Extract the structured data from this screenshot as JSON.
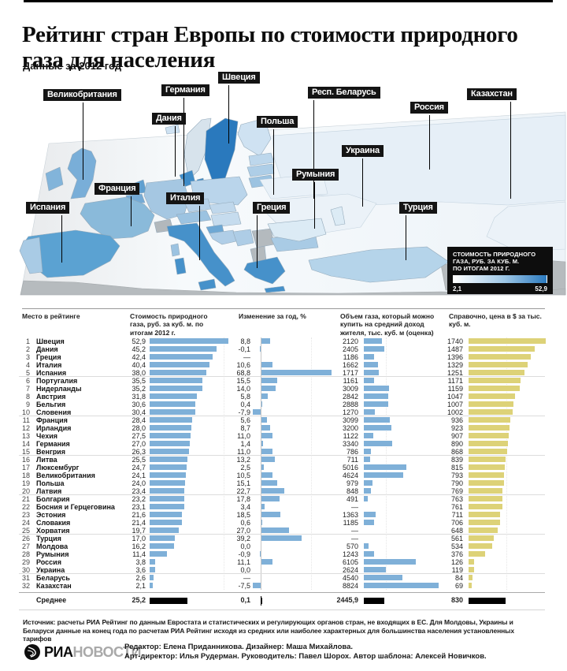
{
  "title": "Рейтинг стран Европы по стоимости природного газа для населения",
  "subtitle": "Данные за 2012 год",
  "colors": {
    "bar_blue": "#7fb0d8",
    "bar_yellow": "#ddd278",
    "average_bar": "#000000",
    "map_scale_min": "#ffffff",
    "map_scale_max": "#2b7abf",
    "label_bg": "#141414"
  },
  "map": {
    "labels": [
      {
        "text": "Швеция"
      },
      {
        "text": "Великобритания"
      },
      {
        "text": "Германия"
      },
      {
        "text": "Респ. Беларусь"
      },
      {
        "text": "Казахстан"
      },
      {
        "text": "Россия"
      },
      {
        "text": "Дания"
      },
      {
        "text": "Польша"
      },
      {
        "text": "Украина"
      },
      {
        "text": "Румыния"
      },
      {
        "text": "Франция"
      },
      {
        "text": "Италия"
      },
      {
        "text": "Греция"
      },
      {
        "text": "Турция"
      },
      {
        "text": "Испания"
      }
    ],
    "legend": {
      "l1": "СТОИМОСТЬ ПРИРОДНОГО",
      "l2": "ГАЗА, РУБ. ЗА КУБ. М.",
      "l3": "ПО ИТОГАМ 2012 Г.",
      "min": "2,1",
      "max": "52,9"
    }
  },
  "table": {
    "columns": [
      "Место в рейтинге",
      "Стоимость природного газа, руб. за куб. м. по итогам 2012 г.",
      "Изменение за год, %",
      "Объем газа, который можно купить на средний доход жителя, тыс. куб. м (оценка)",
      "Справочно, цена в $ за тыс. куб. м."
    ],
    "rows": [
      {
        "rank": "1",
        "name": "Швеция",
        "cost": "52,9",
        "cost_n": 52.9,
        "chg": "8,8",
        "chg_n": 8.8,
        "vol": "2120",
        "vol_n": 2120,
        "ref": "1740",
        "ref_n": 1740
      },
      {
        "rank": "2",
        "name": "Дания",
        "cost": "45,2",
        "cost_n": 45.2,
        "chg": "-0,1",
        "chg_n": -0.1,
        "vol": "2405",
        "vol_n": 2405,
        "ref": "1487",
        "ref_n": 1487
      },
      {
        "rank": "3",
        "name": "Греция",
        "cost": "42,4",
        "cost_n": 42.4,
        "chg": "—",
        "chg_n": null,
        "vol": "1186",
        "vol_n": 1186,
        "ref": "1396",
        "ref_n": 1396
      },
      {
        "rank": "4",
        "name": "Италия",
        "cost": "40,4",
        "cost_n": 40.4,
        "chg": "10,6",
        "chg_n": 10.6,
        "vol": "1662",
        "vol_n": 1662,
        "ref": "1329",
        "ref_n": 1329
      },
      {
        "rank": "5",
        "name": "Испания",
        "cost": "38,0",
        "cost_n": 38.0,
        "chg": "68,8",
        "chg_n": 68.8,
        "vol": "1717",
        "vol_n": 1717,
        "ref": "1251",
        "ref_n": 1251
      },
      {
        "rank": "6",
        "name": "Португалия",
        "cost": "35,5",
        "cost_n": 35.5,
        "chg": "15,5",
        "chg_n": 15.5,
        "vol": "1161",
        "vol_n": 1161,
        "ref": "1171",
        "ref_n": 1171
      },
      {
        "rank": "7",
        "name": "Нидерланды",
        "cost": "35,2",
        "cost_n": 35.2,
        "chg": "14,0",
        "chg_n": 14.0,
        "vol": "3009",
        "vol_n": 3009,
        "ref": "1159",
        "ref_n": 1159
      },
      {
        "rank": "8",
        "name": "Австрия",
        "cost": "31,8",
        "cost_n": 31.8,
        "chg": "5,8",
        "chg_n": 5.8,
        "vol": "2842",
        "vol_n": 2842,
        "ref": "1047",
        "ref_n": 1047
      },
      {
        "rank": "9",
        "name": "Бельгия",
        "cost": "30,6",
        "cost_n": 30.6,
        "chg": "0,4",
        "chg_n": 0.4,
        "vol": "2888",
        "vol_n": 2888,
        "ref": "1007",
        "ref_n": 1007
      },
      {
        "rank": "10",
        "name": "Словения",
        "cost": "30,4",
        "cost_n": 30.4,
        "chg": "-7,9",
        "chg_n": -7.9,
        "vol": "1270",
        "vol_n": 1270,
        "ref": "1002",
        "ref_n": 1002
      },
      {
        "rank": "11",
        "name": "Франция",
        "cost": "28,4",
        "cost_n": 28.4,
        "chg": "5,6",
        "chg_n": 5.6,
        "vol": "3099",
        "vol_n": 3099,
        "ref": "936",
        "ref_n": 936
      },
      {
        "rank": "12",
        "name": "Ирландия",
        "cost": "28,0",
        "cost_n": 28.0,
        "chg": "8,7",
        "chg_n": 8.7,
        "vol": "3200",
        "vol_n": 3200,
        "ref": "923",
        "ref_n": 923
      },
      {
        "rank": "13",
        "name": "Чехия",
        "cost": "27,5",
        "cost_n": 27.5,
        "chg": "11,0",
        "chg_n": 11.0,
        "vol": "1122",
        "vol_n": 1122,
        "ref": "907",
        "ref_n": 907
      },
      {
        "rank": "14",
        "name": "Германия",
        "cost": "27,0",
        "cost_n": 27.0,
        "chg": "1,4",
        "chg_n": 1.4,
        "vol": "3340",
        "vol_n": 3340,
        "ref": "890",
        "ref_n": 890
      },
      {
        "rank": "15",
        "name": "Венгрия",
        "cost": "26,3",
        "cost_n": 26.3,
        "chg": "11,0",
        "chg_n": 11.0,
        "vol": "786",
        "vol_n": 786,
        "ref": "868",
        "ref_n": 868
      },
      {
        "rank": "16",
        "name": "Литва",
        "cost": "25,5",
        "cost_n": 25.5,
        "chg": "13,2",
        "chg_n": 13.2,
        "vol": "711",
        "vol_n": 711,
        "ref": "839",
        "ref_n": 839
      },
      {
        "rank": "17",
        "name": "Люксембург",
        "cost": "24,7",
        "cost_n": 24.7,
        "chg": "2,5",
        "chg_n": 2.5,
        "vol": "5016",
        "vol_n": 5016,
        "ref": "815",
        "ref_n": 815
      },
      {
        "rank": "18",
        "name": "Великобритания",
        "cost": "24,1",
        "cost_n": 24.1,
        "chg": "10,5",
        "chg_n": 10.5,
        "vol": "4624",
        "vol_n": 4624,
        "ref": "793",
        "ref_n": 793
      },
      {
        "rank": "19",
        "name": "Польша",
        "cost": "24,0",
        "cost_n": 24.0,
        "chg": "15,1",
        "chg_n": 15.1,
        "vol": "979",
        "vol_n": 979,
        "ref": "790",
        "ref_n": 790
      },
      {
        "rank": "20",
        "name": "Латвия",
        "cost": "23,4",
        "cost_n": 23.4,
        "chg": "22,7",
        "chg_n": 22.7,
        "vol": "848",
        "vol_n": 848,
        "ref": "769",
        "ref_n": 769
      },
      {
        "rank": "21",
        "name": "Болгария",
        "cost": "23,2",
        "cost_n": 23.2,
        "chg": "17,8",
        "chg_n": 17.8,
        "vol": "491",
        "vol_n": 491,
        "ref": "763",
        "ref_n": 763
      },
      {
        "rank": "22",
        "name": "Босния и Герцеговина",
        "cost": "23,1",
        "cost_n": 23.1,
        "chg": "3,4",
        "chg_n": 3.4,
        "vol": "—",
        "vol_n": null,
        "ref": "761",
        "ref_n": 761
      },
      {
        "rank": "23",
        "name": "Эстония",
        "cost": "21,6",
        "cost_n": 21.6,
        "chg": "18,5",
        "chg_n": 18.5,
        "vol": "1363",
        "vol_n": 1363,
        "ref": "711",
        "ref_n": 711
      },
      {
        "rank": "24",
        "name": "Словакия",
        "cost": "21,4",
        "cost_n": 21.4,
        "chg": "0,6",
        "chg_n": 0.6,
        "vol": "1185",
        "vol_n": 1185,
        "ref": "706",
        "ref_n": 706
      },
      {
        "rank": "25",
        "name": "Хорватия",
        "cost": "19,7",
        "cost_n": 19.7,
        "chg": "27,0",
        "chg_n": 27.0,
        "vol": "—",
        "vol_n": null,
        "ref": "648",
        "ref_n": 648
      },
      {
        "rank": "26",
        "name": "Турция",
        "cost": "17,0",
        "cost_n": 17.0,
        "chg": "39,2",
        "chg_n": 39.2,
        "vol": "—",
        "vol_n": null,
        "ref": "561",
        "ref_n": 561
      },
      {
        "rank": "27",
        "name": "Молдова",
        "cost": "16,2",
        "cost_n": 16.2,
        "chg": "0,0",
        "chg_n": 0.0,
        "vol": "570",
        "vol_n": 570,
        "ref": "534",
        "ref_n": 534
      },
      {
        "rank": "28",
        "name": "Румыния",
        "cost": "11,4",
        "cost_n": 11.4,
        "chg": "-0,9",
        "chg_n": -0.9,
        "vol": "1243",
        "vol_n": 1243,
        "ref": "376",
        "ref_n": 376
      },
      {
        "rank": "29",
        "name": "Россия",
        "cost": "3,8",
        "cost_n": 3.8,
        "chg": "11,1",
        "chg_n": 11.1,
        "vol": "6105",
        "vol_n": 6105,
        "ref": "126",
        "ref_n": 126
      },
      {
        "rank": "30",
        "name": "Украина",
        "cost": "3,6",
        "cost_n": 3.6,
        "chg": "0,0",
        "chg_n": 0.0,
        "vol": "2624",
        "vol_n": 2624,
        "ref": "119",
        "ref_n": 119
      },
      {
        "rank": "31",
        "name": "Беларусь",
        "cost": "2,6",
        "cost_n": 2.6,
        "chg": "—",
        "chg_n": null,
        "vol": "4540",
        "vol_n": 4540,
        "ref": "84",
        "ref_n": 84
      },
      {
        "rank": "32",
        "name": "Казахстан",
        "cost": "2,1",
        "cost_n": 2.1,
        "chg": "-7,5",
        "chg_n": -7.5,
        "vol": "8824",
        "vol_n": 8824,
        "ref": "69",
        "ref_n": 69
      }
    ],
    "average": {
      "label": "Среднее",
      "cost": "25,2",
      "cost_n": 25.2,
      "chg": "0,1",
      "chg_n": 0.1,
      "vol": "2445,9",
      "vol_n": 2445.9,
      "ref": "830",
      "ref_n": 830
    }
  },
  "chart_data": {
    "type": "table",
    "title": "Рейтинг стран Европы по стоимости природного газа для населения",
    "subtitle": "Данные за 2012 год",
    "columns": [
      "Место в рейтинге",
      "Стоимость природного газа, руб. за куб. м. по итогам 2012 г.",
      "Изменение за год, %",
      "Объем газа, который можно купить на средний доход жителя, тыс. куб. м (оценка)",
      "Справочно, цена в $ за тыс. куб. м."
    ],
    "categories": [
      "Швеция",
      "Дания",
      "Греция",
      "Италия",
      "Испания",
      "Португалия",
      "Нидерланды",
      "Австрия",
      "Бельгия",
      "Словения",
      "Франция",
      "Ирландия",
      "Чехия",
      "Германия",
      "Венгрия",
      "Литва",
      "Люксембург",
      "Великобритания",
      "Польша",
      "Латвия",
      "Болгария",
      "Босния и Герцеговина",
      "Эстония",
      "Словакия",
      "Хорватия",
      "Турция",
      "Молдова",
      "Румыния",
      "Россия",
      "Украина",
      "Беларусь",
      "Казахстан"
    ],
    "series": [
      {
        "name": "Стоимость, руб. за куб. м",
        "values": [
          52.9,
          45.2,
          42.4,
          40.4,
          38.0,
          35.5,
          35.2,
          31.8,
          30.6,
          30.4,
          28.4,
          28.0,
          27.5,
          27.0,
          26.3,
          25.5,
          24.7,
          24.1,
          24.0,
          23.4,
          23.2,
          23.1,
          21.6,
          21.4,
          19.7,
          17.0,
          16.2,
          11.4,
          3.8,
          3.6,
          2.6,
          2.1
        ]
      },
      {
        "name": "Изменение за год, %",
        "values": [
          8.8,
          -0.1,
          null,
          10.6,
          68.8,
          15.5,
          14.0,
          5.8,
          0.4,
          -7.9,
          5.6,
          8.7,
          11.0,
          1.4,
          11.0,
          13.2,
          2.5,
          10.5,
          15.1,
          22.7,
          17.8,
          3.4,
          18.5,
          0.6,
          27.0,
          39.2,
          0.0,
          -0.9,
          11.1,
          0.0,
          null,
          -7.5
        ]
      },
      {
        "name": "Объем газа на средний доход, тыс. куб. м",
        "values": [
          2120,
          2405,
          1186,
          1662,
          1717,
          1161,
          3009,
          2842,
          2888,
          1270,
          3099,
          3200,
          1122,
          3340,
          786,
          711,
          5016,
          4624,
          979,
          848,
          491,
          null,
          1363,
          1185,
          null,
          null,
          570,
          1243,
          6105,
          2624,
          4540,
          8824
        ]
      },
      {
        "name": "Цена в $ за тыс. куб. м",
        "values": [
          1740,
          1487,
          1396,
          1329,
          1251,
          1171,
          1159,
          1047,
          1007,
          1002,
          936,
          923,
          907,
          890,
          868,
          839,
          815,
          793,
          790,
          769,
          763,
          761,
          711,
          706,
          648,
          561,
          534,
          376,
          126,
          119,
          84,
          69
        ]
      }
    ],
    "average": {
      "cost": 25.2,
      "change_pct": 0.1,
      "volume": 2445.9,
      "price_usd": 830
    },
    "map_legend": {
      "label": "СТОИМОСТЬ ПРИРОДНОГО ГАЗА, РУБ. ЗА КУБ. М. ПО ИТОГАМ 2012 Г.",
      "min": 2.1,
      "max": 52.9
    }
  },
  "source": "Источник: расчеты РИА Рейтинг по данным Евростата и статистических и регулирующих органов стран, не входящих в ЕС. Для Молдовы, Украины и Беларуси данные на конец года по расчетам РИА Рейтинг исходя из средних или наиболее характерных для большинства населения установленных тарифов",
  "footer": {
    "logo_ria": "РИА",
    "logo_novosti": "НОВОСТИ",
    "credits1": "Редактор: Елена Приданникова. Дизайнер: Маша Михайлова.",
    "credits2": "Арт-директор: Илья Рудерман. Руководитель: Павел Шорох. Автор шаблона: Алексей Новичков."
  }
}
